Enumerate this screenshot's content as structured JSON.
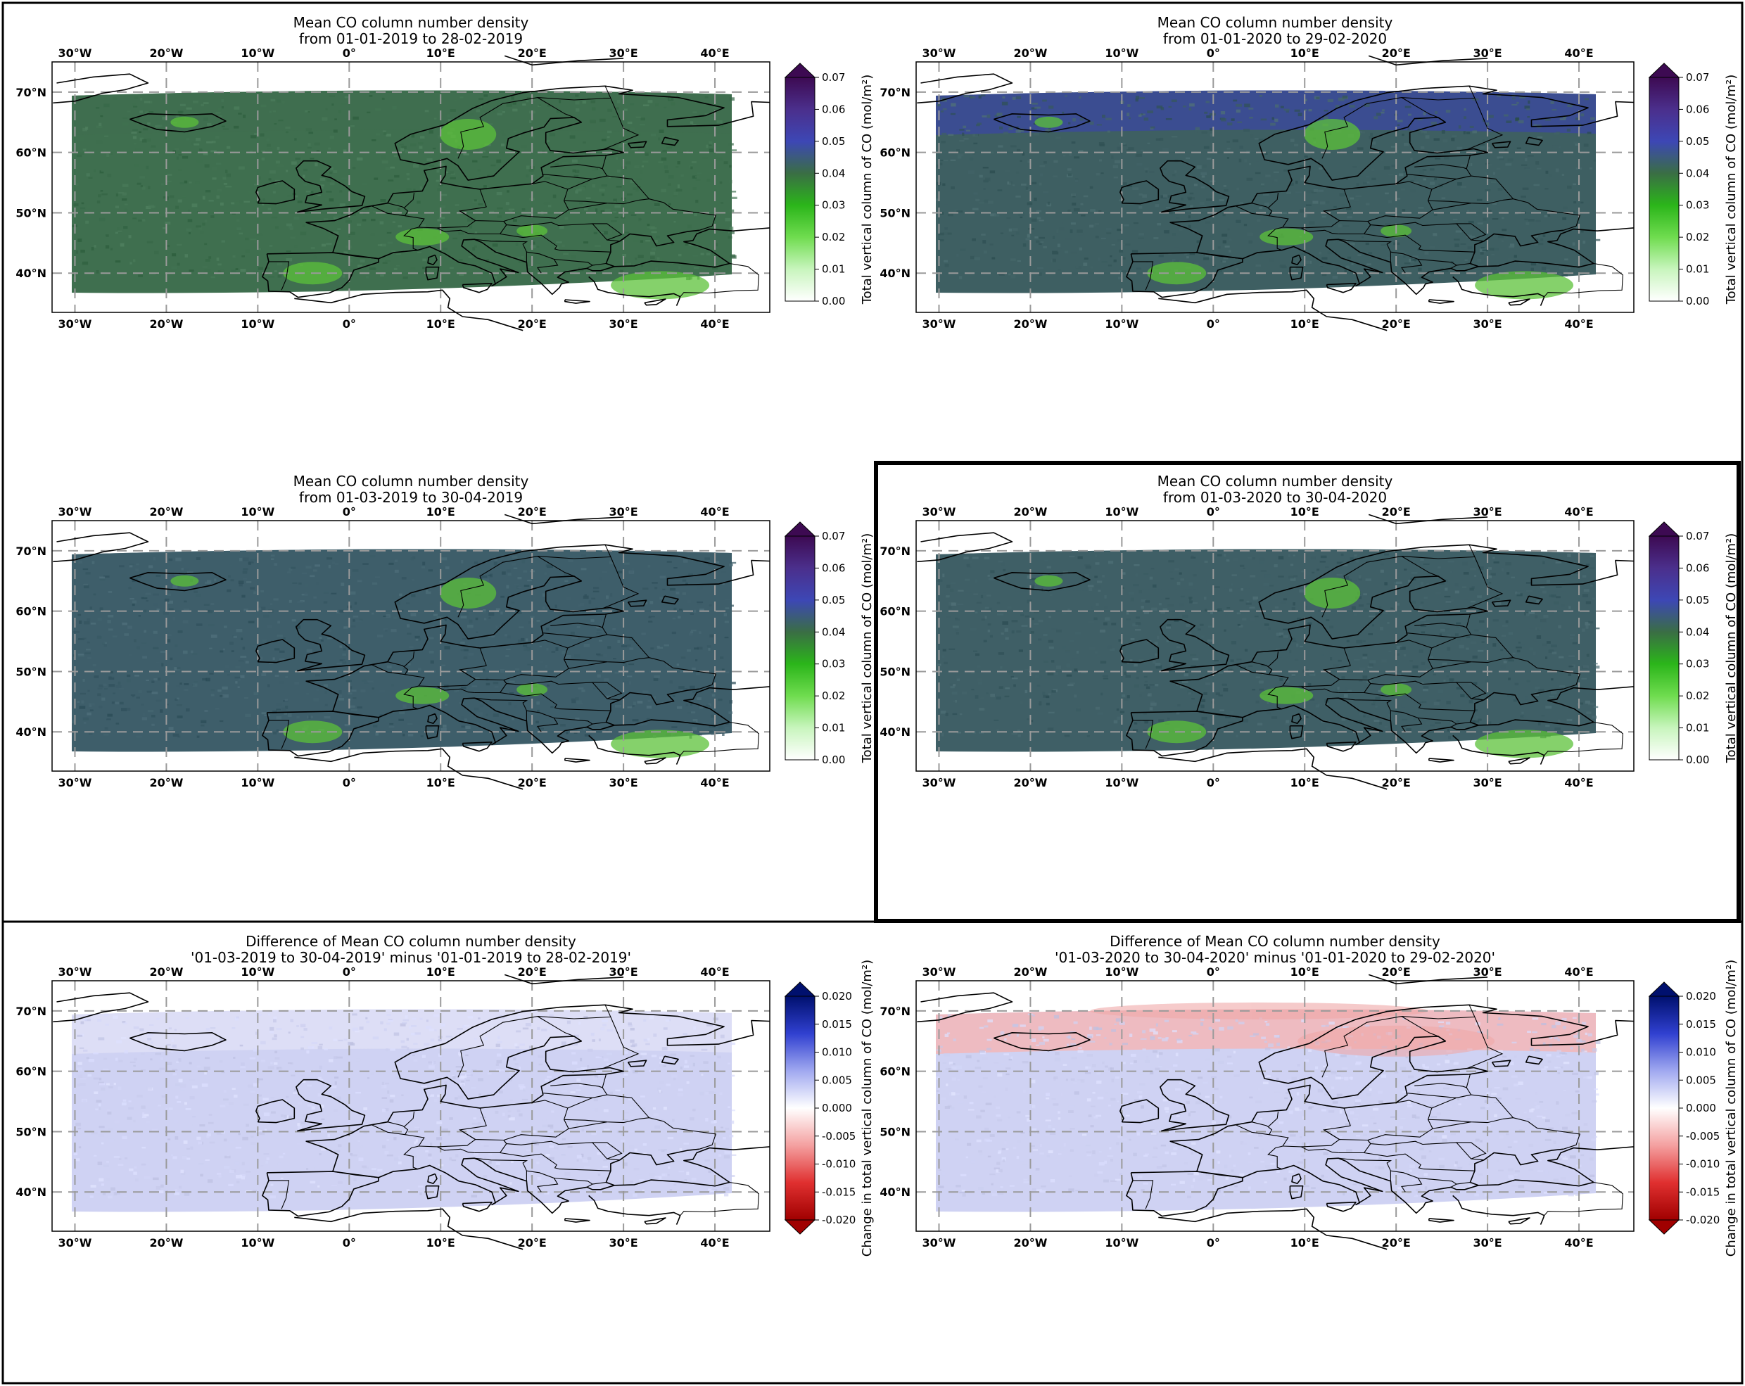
{
  "figure": {
    "colorbar_seq": {
      "label": "Total vertical column of CO (mol/m²)",
      "ticks": [
        "0.00",
        "0.01",
        "0.02",
        "0.03",
        "0.04",
        "0.05",
        "0.06",
        "0.07"
      ],
      "range": [
        0.0,
        0.07
      ],
      "colors": [
        "#ffffff",
        "#c8f5bd",
        "#6fdc4f",
        "#2bb51a",
        "#3a6e44",
        "#3d47b5",
        "#4b2f8c",
        "#3d0a52"
      ]
    },
    "colorbar_diff": {
      "label": "Change in total vertical column of CO (mol/m²)",
      "ticks": [
        "-0.020",
        "-0.015",
        "-0.010",
        "-0.005",
        "0.000",
        "0.005",
        "0.010",
        "0.015",
        "0.020"
      ],
      "range": [
        -0.02,
        0.02
      ],
      "colors": [
        "#a00000",
        "#e03030",
        "#f4a0a0",
        "#ffffff",
        "#a0a8f0",
        "#3040d0",
        "#00106e"
      ]
    },
    "lon_ticks": [
      "30°W",
      "20°W",
      "10°W",
      "0°",
      "10°E",
      "20°E",
      "30°E",
      "40°E"
    ],
    "lat_ticks": [
      "70°N",
      "60°N",
      "50°N",
      "40°N"
    ]
  },
  "panels": [
    {
      "id": "jan-feb-2019",
      "title_line1": "Mean CO column number density",
      "title_line2": "from 01-01-2019 to 28-02-2019",
      "kind": "mean",
      "base_color": "#3f6f4f",
      "north_color": "#3f6f4f",
      "highlighted": false
    },
    {
      "id": "jan-feb-2020",
      "title_line1": "Mean CO column number density",
      "title_line2": "from 01-01-2020 to 29-02-2020",
      "kind": "mean",
      "base_color": "#3e5f62",
      "north_color": "#3b4a9a",
      "highlighted": false
    },
    {
      "id": "mar-apr-2019",
      "title_line1": "Mean CO column number density",
      "title_line2": "from 01-03-2019 to 30-04-2019",
      "kind": "mean",
      "base_color": "#3e5e6a",
      "north_color": "#3e5e6a",
      "highlighted": false
    },
    {
      "id": "mar-apr-2020",
      "title_line1": "Mean CO column number density",
      "title_line2": "from 01-03-2020 to 30-04-2020",
      "kind": "mean",
      "base_color": "#3f5f66",
      "north_color": "#3f5f66",
      "highlighted": true
    },
    {
      "id": "diff-2019",
      "title_line1": "Difference of Mean CO column number density",
      "title_line2": "'01-03-2019 to 30-04-2019' minus '01-01-2019 to 28-02-2019'",
      "kind": "diff",
      "base_color": "#cfd2f3",
      "north_color": "#dfe0f6",
      "highlighted": false
    },
    {
      "id": "diff-2020",
      "title_line1": "Difference of Mean CO column number density",
      "title_line2": "'01-03-2020 to 30-04-2020' minus '01-01-2020 to 29-02-2020'",
      "kind": "diff",
      "base_color": "#cfd2f3",
      "north_color": "#f3b7b7",
      "highlighted": false
    }
  ]
}
